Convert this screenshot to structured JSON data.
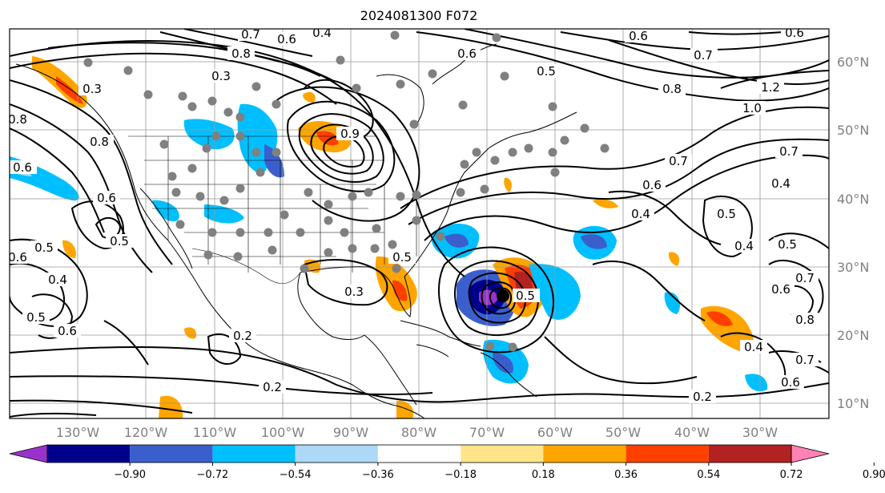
{
  "title": "2024081300 F072",
  "colors": {
    "land_dots": "#808080",
    "center_marker": "#000000",
    "gridline": "#999999",
    "axis_label": "#808080"
  },
  "longitude_labels": [
    "130°W",
    "120°W",
    "110°W",
    "100°W",
    "90°W",
    "80°W",
    "70°W",
    "60°W",
    "50°W",
    "40°W",
    "30°W"
  ],
  "latitude_labels": [
    "60°N",
    "50°N",
    "40°N",
    "30°N",
    "20°N",
    "10°N"
  ],
  "colorbar": {
    "orientation": "horizontal",
    "extend": "both",
    "tick_labels": [
      "−0.90",
      "−0.72",
      "−0.54",
      "−0.36",
      "−0.18",
      "0.18",
      "0.36",
      "0.54",
      "0.72",
      "0.90"
    ],
    "bins": [
      {
        "color": "#9932cc"
      },
      {
        "color": "#00008b"
      },
      {
        "color": "#3a5fcd"
      },
      {
        "color": "#00bfff"
      },
      {
        "color": "#add8f7"
      },
      {
        "color": "#ffffff"
      },
      {
        "color": "#ffe48a"
      },
      {
        "color": "#ffa500"
      },
      {
        "color": "#ff3f00"
      },
      {
        "color": "#b22222"
      },
      {
        "color": "#ff82b4"
      }
    ]
  },
  "contour_labels": [
    {
      "text": "0.7"
    },
    {
      "text": "0.6"
    },
    {
      "text": "0.4"
    },
    {
      "text": "0.8"
    },
    {
      "text": "0.3"
    },
    {
      "text": "0.6"
    },
    {
      "text": "0.5"
    },
    {
      "text": "0.8"
    },
    {
      "text": "0.3"
    },
    {
      "text": "0.6"
    },
    {
      "text": "0.5"
    },
    {
      "text": "0.5"
    },
    {
      "text": "0.4"
    },
    {
      "text": "0.5"
    },
    {
      "text": "0.6"
    },
    {
      "text": "0.3"
    },
    {
      "text": "0.2"
    },
    {
      "text": "0.9"
    },
    {
      "text": "0.5"
    },
    {
      "text": "0.6"
    },
    {
      "text": "0.7"
    },
    {
      "text": "1.2"
    },
    {
      "text": "1.0"
    },
    {
      "text": "0.8"
    },
    {
      "text": "0.7"
    },
    {
      "text": "0.6"
    },
    {
      "text": "0.7"
    },
    {
      "text": "0.6"
    },
    {
      "text": "0.4"
    },
    {
      "text": "0.4"
    },
    {
      "text": "0.5"
    },
    {
      "text": "0.4"
    },
    {
      "text": "0.5"
    },
    {
      "text": "0.7"
    },
    {
      "text": "0.6"
    },
    {
      "text": "0.8"
    },
    {
      "text": "0.4"
    },
    {
      "text": "0.7"
    },
    {
      "text": "0.6"
    },
    {
      "text": "0.2"
    },
    {
      "text": "0.6"
    },
    {
      "text": "0.8"
    },
    {
      "text": "0.2"
    },
    {
      "text": "0.6"
    },
    {
      "text": "0.5"
    }
  ]
}
